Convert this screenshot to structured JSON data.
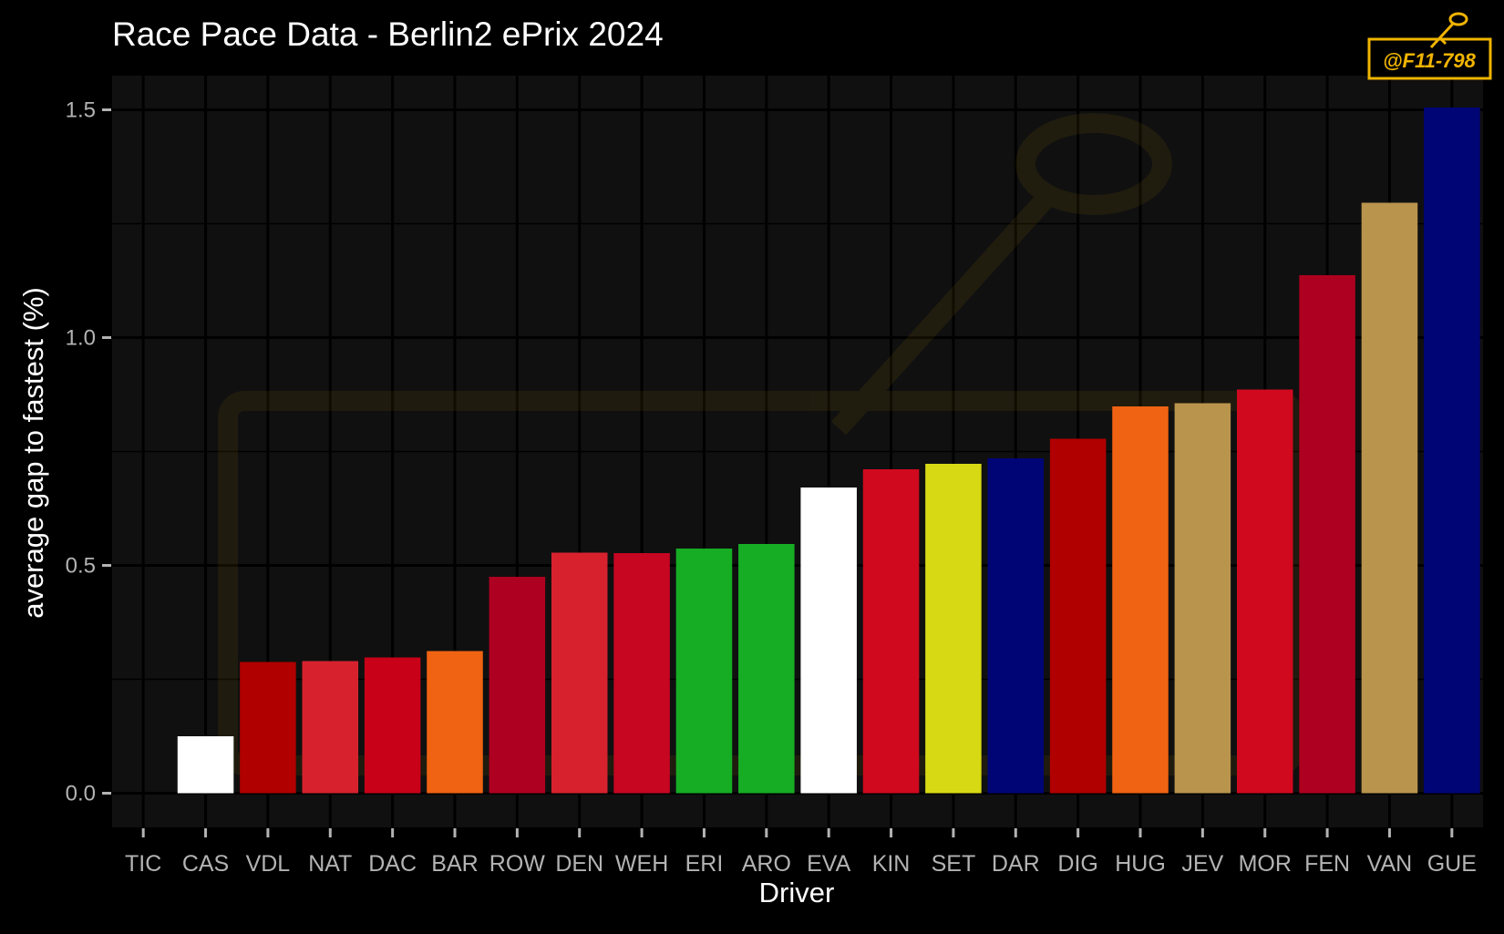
{
  "chart_data": {
    "type": "bar",
    "title": "Race Pace Data - Berlin2 ePrix 2024",
    "xlabel": "Driver",
    "ylabel": "average gap to fastest (%)",
    "ylim": [
      -0.075,
      1.575
    ],
    "yticks": [
      0.0,
      0.5,
      1.0,
      1.5
    ],
    "ytick_labels": [
      "0.0",
      "0.5",
      "1.0",
      "1.5"
    ],
    "grid": true,
    "legend": "none",
    "categories": [
      "TIC",
      "CAS",
      "VDL",
      "NAT",
      "DAC",
      "BAR",
      "ROW",
      "DEN",
      "WEH",
      "ERI",
      "ARO",
      "EVA",
      "KIN",
      "SET",
      "DAR",
      "DIG",
      "HUG",
      "JEV",
      "MOR",
      "FEN",
      "VAN",
      "GUE"
    ],
    "values": [
      0.0,
      0.125,
      0.288,
      0.29,
      0.298,
      0.312,
      0.475,
      0.528,
      0.527,
      0.537,
      0.547,
      0.671,
      0.711,
      0.723,
      0.735,
      0.778,
      0.849,
      0.856,
      0.886,
      1.137,
      1.296,
      1.505
    ],
    "colors": [
      "#ffffff",
      "#ffffff",
      "#b00000",
      "#d7222e",
      "#c80018",
      "#f06312",
      "#ae0020",
      "#d7222e",
      "#c70622",
      "#16ad24",
      "#16ad24",
      "#ffffff",
      "#d0091e",
      "#d7d914",
      "#000576",
      "#b00000",
      "#f06312",
      "#b9944c",
      "#d0091e",
      "#ae0020",
      "#b9944c",
      "#000576"
    ]
  },
  "watermark": {
    "text": "@F11-798",
    "color": "#f0b400"
  },
  "colors": {
    "background": "#000000",
    "panel": "#101010",
    "grid": "#000000",
    "tick_text": "#b3b3b3",
    "title_text": "#ffffff"
  }
}
